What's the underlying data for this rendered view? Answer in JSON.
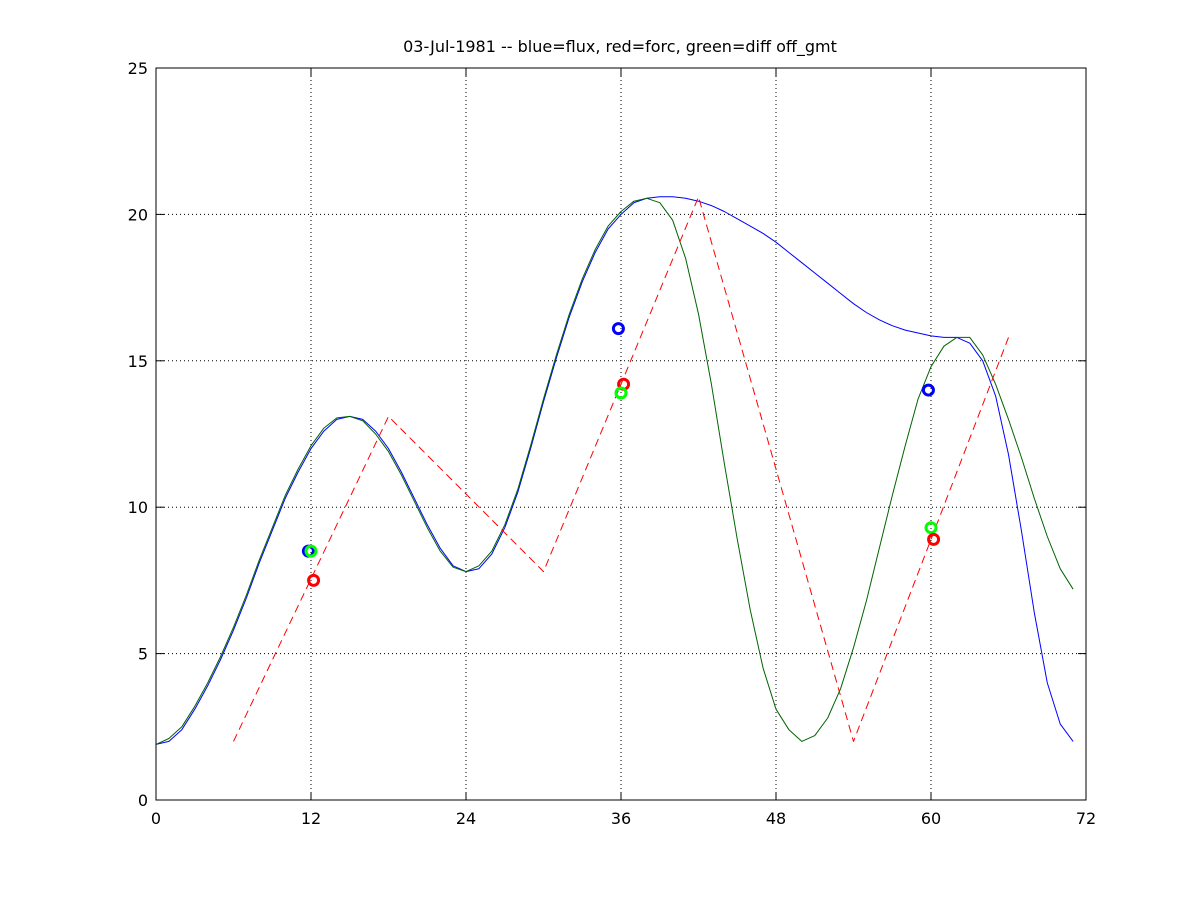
{
  "chart_data": {
    "type": "line",
    "title": "03-Jul-1981 -- blue=flux, red=forc, green=diff off_gmt",
    "xlabel": "",
    "ylabel": "",
    "xlim": [
      0,
      72
    ],
    "ylim": [
      0,
      25
    ],
    "x_ticks": [
      0,
      12,
      24,
      36,
      48,
      60,
      72
    ],
    "y_ticks": [
      0,
      5,
      10,
      15,
      20,
      25
    ],
    "grid": true,
    "colors": {
      "blue": "#0000ff",
      "red": "#ff0000",
      "green": "#006400",
      "bright_green": "#00ff00"
    },
    "series": [
      {
        "color": "blue",
        "style": "solid",
        "points": [
          [
            0,
            1.9
          ],
          [
            1,
            2.0
          ],
          [
            2,
            2.4
          ],
          [
            3,
            3.1
          ],
          [
            4,
            3.9
          ],
          [
            5,
            4.8
          ],
          [
            6,
            5.8
          ],
          [
            7,
            6.9
          ],
          [
            8,
            8.1
          ],
          [
            9,
            9.2
          ],
          [
            10,
            10.3
          ],
          [
            11,
            11.2
          ],
          [
            12,
            12.0
          ],
          [
            13,
            12.6
          ],
          [
            14,
            13.0
          ],
          [
            15,
            13.1
          ],
          [
            16,
            13.0
          ],
          [
            17,
            12.6
          ],
          [
            18,
            12.0
          ],
          [
            19,
            11.2
          ],
          [
            20,
            10.3
          ],
          [
            21,
            9.4
          ],
          [
            22,
            8.6
          ],
          [
            23,
            8.0
          ],
          [
            24,
            7.8
          ],
          [
            25,
            7.9
          ],
          [
            26,
            8.4
          ],
          [
            27,
            9.3
          ],
          [
            28,
            10.5
          ],
          [
            29,
            12.0
          ],
          [
            30,
            13.6
          ],
          [
            31,
            15.1
          ],
          [
            32,
            16.5
          ],
          [
            33,
            17.7
          ],
          [
            34,
            18.7
          ],
          [
            35,
            19.5
          ],
          [
            36,
            20.0
          ],
          [
            37,
            20.4
          ],
          [
            38,
            20.55
          ],
          [
            39,
            20.6
          ],
          [
            40,
            20.6
          ],
          [
            41,
            20.55
          ],
          [
            42,
            20.45
          ],
          [
            43,
            20.3
          ],
          [
            44,
            20.1
          ],
          [
            45,
            19.85
          ],
          [
            46,
            19.6
          ],
          [
            47,
            19.35
          ],
          [
            48,
            19.05
          ],
          [
            49,
            18.7
          ],
          [
            50,
            18.35
          ],
          [
            51,
            18.0
          ],
          [
            52,
            17.65
          ],
          [
            53,
            17.3
          ],
          [
            54,
            16.95
          ],
          [
            55,
            16.65
          ],
          [
            56,
            16.4
          ],
          [
            57,
            16.2
          ],
          [
            58,
            16.05
          ],
          [
            59,
            15.95
          ],
          [
            60,
            15.85
          ],
          [
            61,
            15.8
          ],
          [
            62,
            15.8
          ],
          [
            63,
            15.6
          ],
          [
            64,
            15.0
          ],
          [
            65,
            13.8
          ],
          [
            66,
            11.8
          ],
          [
            67,
            9.2
          ],
          [
            68,
            6.4
          ],
          [
            69,
            4.0
          ],
          [
            70,
            2.6
          ],
          [
            71,
            2.0
          ]
        ]
      },
      {
        "color": "green",
        "style": "solid",
        "points": [
          [
            0,
            1.9
          ],
          [
            1,
            2.1
          ],
          [
            2,
            2.5
          ],
          [
            3,
            3.2
          ],
          [
            4,
            4.0
          ],
          [
            5,
            4.9
          ],
          [
            6,
            5.9
          ],
          [
            7,
            7.0
          ],
          [
            8,
            8.2
          ],
          [
            9,
            9.3
          ],
          [
            10,
            10.4
          ],
          [
            11,
            11.3
          ],
          [
            12,
            12.1
          ],
          [
            13,
            12.7
          ],
          [
            14,
            13.05
          ],
          [
            15,
            13.1
          ],
          [
            16,
            12.95
          ],
          [
            17,
            12.5
          ],
          [
            18,
            11.9
          ],
          [
            19,
            11.1
          ],
          [
            20,
            10.2
          ],
          [
            21,
            9.3
          ],
          [
            22,
            8.5
          ],
          [
            23,
            7.95
          ],
          [
            24,
            7.8
          ],
          [
            25,
            8.0
          ],
          [
            26,
            8.5
          ],
          [
            27,
            9.4
          ],
          [
            28,
            10.6
          ],
          [
            29,
            12.1
          ],
          [
            30,
            13.7
          ],
          [
            31,
            15.2
          ],
          [
            32,
            16.6
          ],
          [
            33,
            17.8
          ],
          [
            34,
            18.8
          ],
          [
            35,
            19.6
          ],
          [
            36,
            20.1
          ],
          [
            37,
            20.45
          ],
          [
            38,
            20.55
          ],
          [
            39,
            20.4
          ],
          [
            40,
            19.8
          ],
          [
            41,
            18.5
          ],
          [
            42,
            16.6
          ],
          [
            43,
            14.2
          ],
          [
            44,
            11.5
          ],
          [
            45,
            8.9
          ],
          [
            46,
            6.5
          ],
          [
            47,
            4.5
          ],
          [
            48,
            3.1
          ],
          [
            49,
            2.4
          ],
          [
            50,
            2.0
          ],
          [
            51,
            2.2
          ],
          [
            52,
            2.8
          ],
          [
            53,
            3.8
          ],
          [
            54,
            5.2
          ],
          [
            55,
            6.8
          ],
          [
            56,
            8.6
          ],
          [
            57,
            10.4
          ],
          [
            58,
            12.1
          ],
          [
            59,
            13.7
          ],
          [
            60,
            14.8
          ],
          [
            61,
            15.5
          ],
          [
            62,
            15.8
          ],
          [
            63,
            15.8
          ],
          [
            64,
            15.2
          ],
          [
            65,
            14.2
          ],
          [
            66,
            13.0
          ],
          [
            67,
            11.7
          ],
          [
            68,
            10.3
          ],
          [
            69,
            9.0
          ],
          [
            70,
            7.9
          ],
          [
            71,
            7.2
          ]
        ]
      },
      {
        "color": "red",
        "style": "dashed",
        "points": [
          [
            6,
            2.0
          ],
          [
            18,
            13.1
          ],
          [
            30,
            7.8
          ],
          [
            42,
            20.6
          ],
          [
            54,
            2.0
          ],
          [
            66,
            15.8
          ]
        ]
      }
    ],
    "markers": [
      {
        "color": "blue",
        "x": 11.8,
        "y": 8.5
      },
      {
        "color": "bright_green",
        "x": 12.0,
        "y": 8.5
      },
      {
        "color": "red",
        "x": 12.2,
        "y": 7.5
      },
      {
        "color": "blue",
        "x": 35.8,
        "y": 16.1
      },
      {
        "color": "red",
        "x": 36.2,
        "y": 14.2
      },
      {
        "color": "bright_green",
        "x": 36.0,
        "y": 13.9
      },
      {
        "color": "blue",
        "x": 59.8,
        "y": 14.0
      },
      {
        "color": "bright_green",
        "x": 60.0,
        "y": 9.3
      },
      {
        "color": "red",
        "x": 60.2,
        "y": 8.9
      }
    ]
  }
}
